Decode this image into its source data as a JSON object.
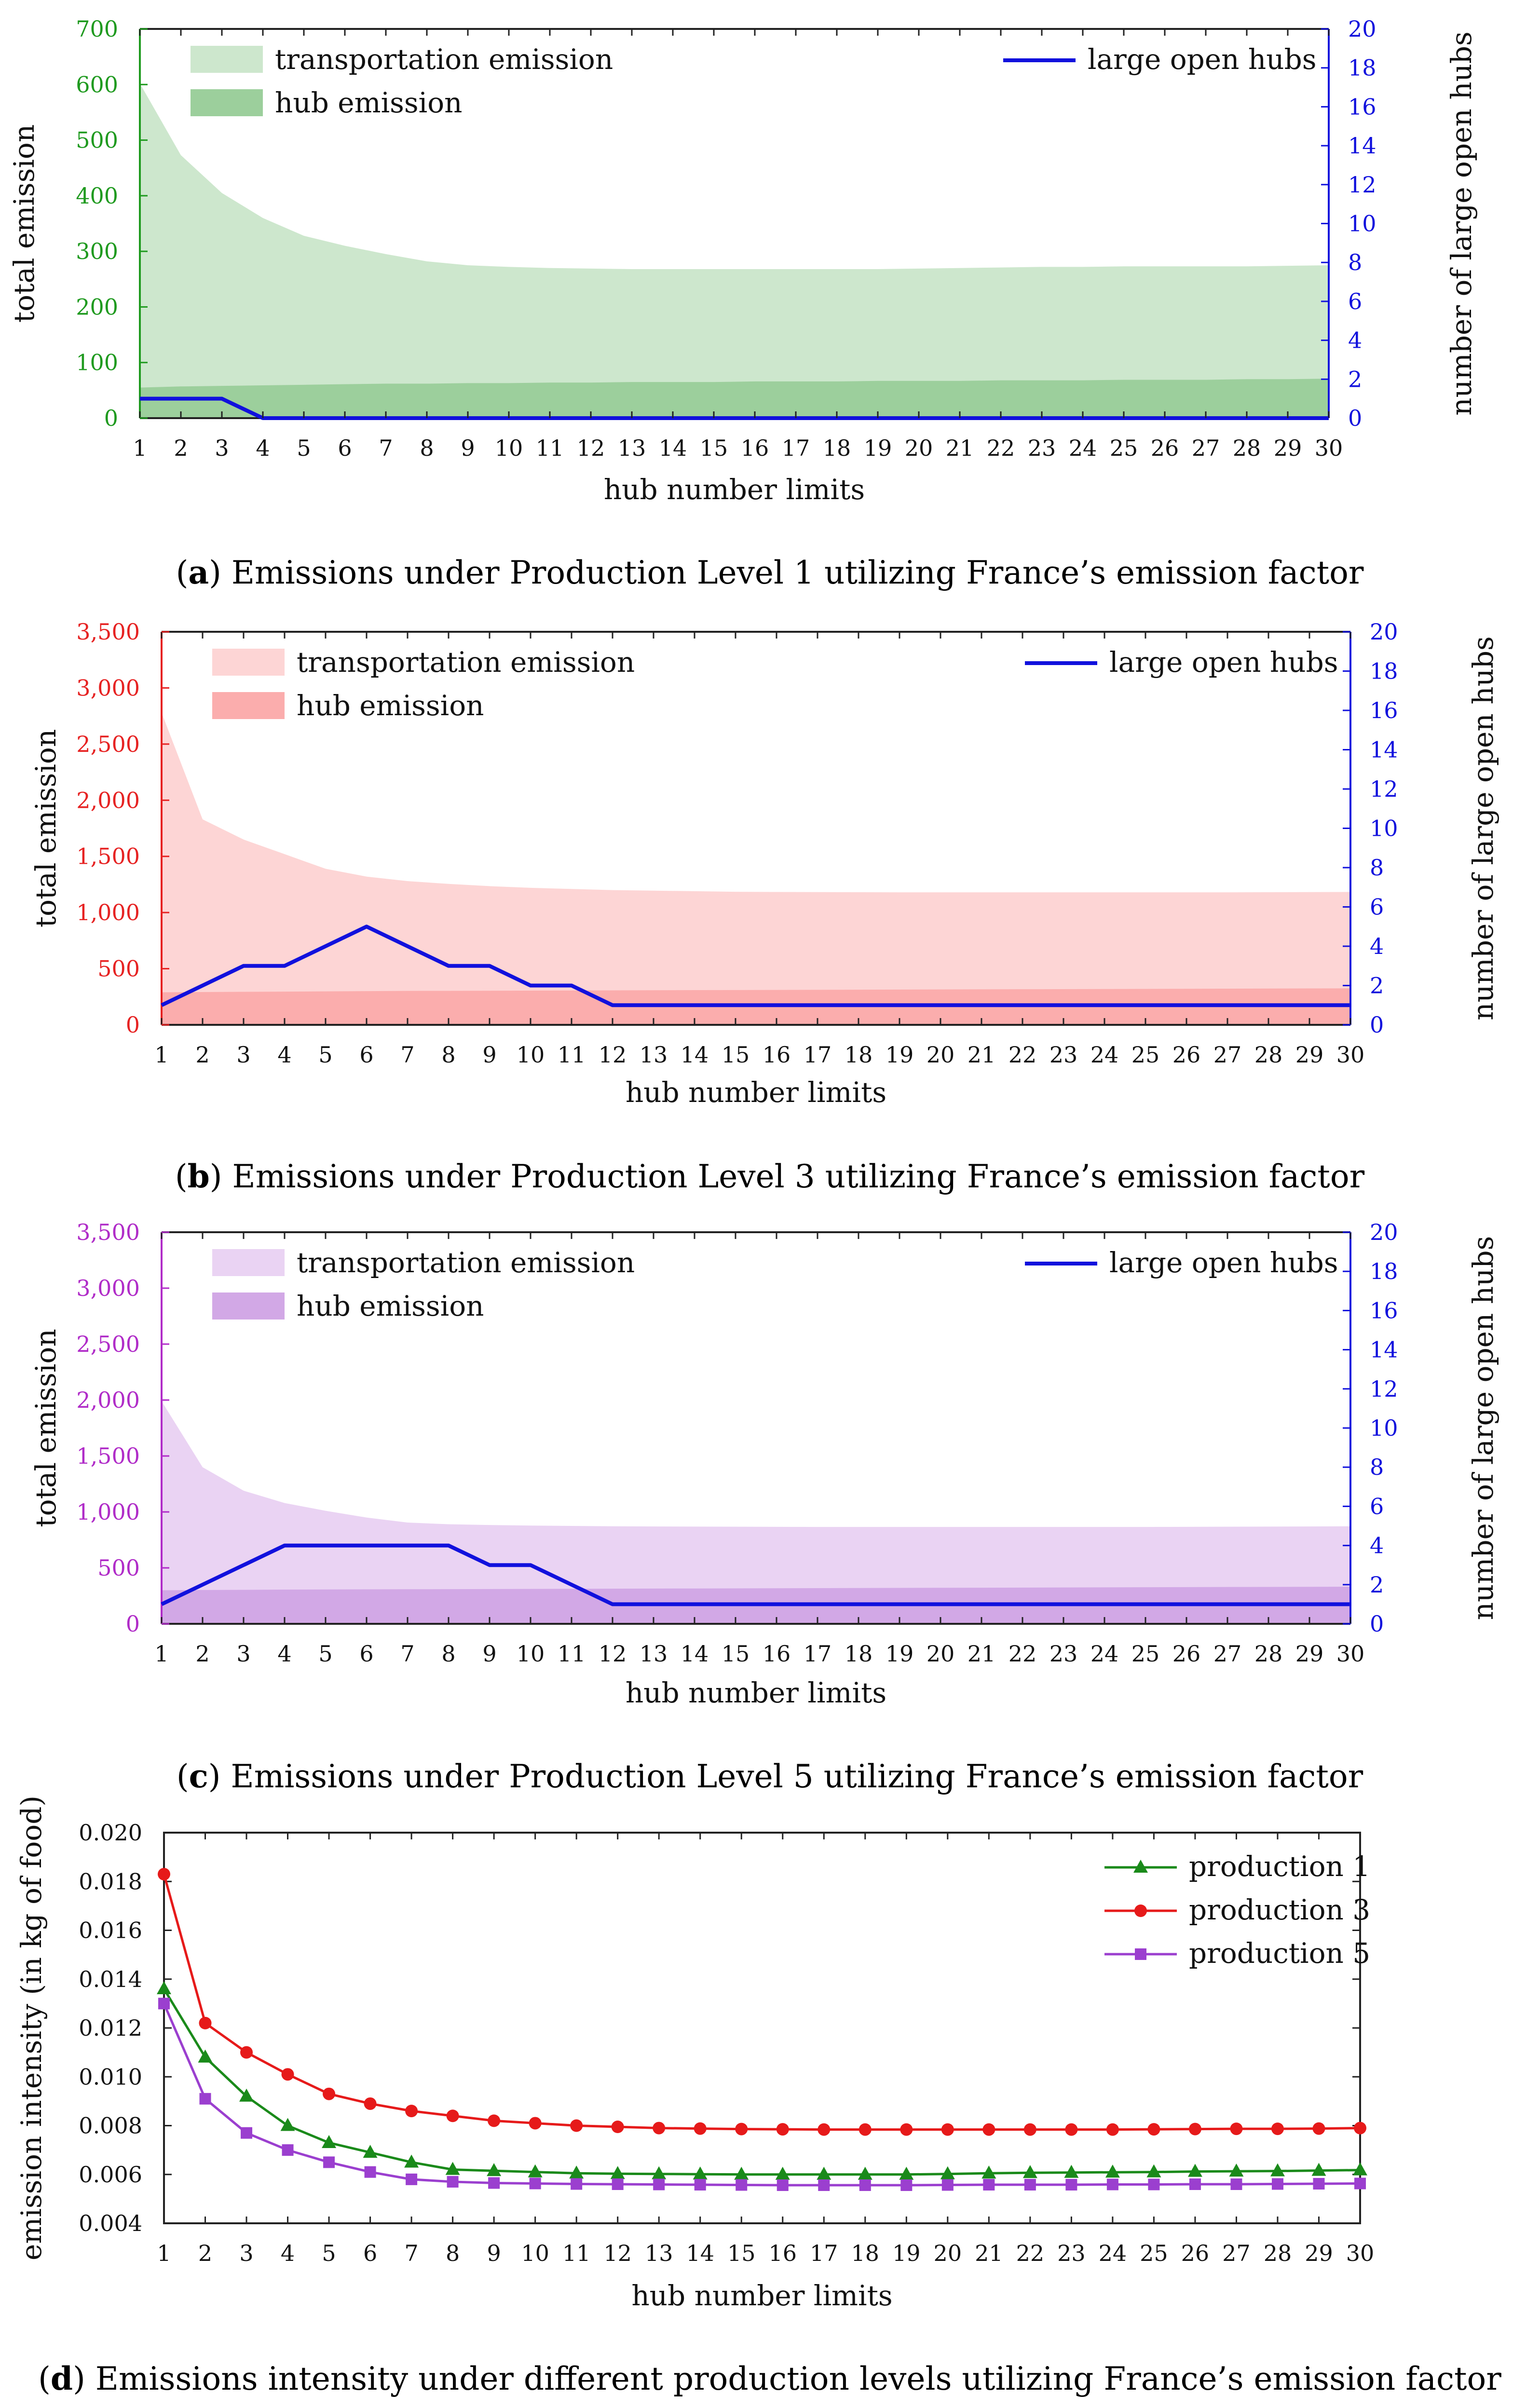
{
  "charts": [
    {
      "id": "a",
      "caption_letter": "a",
      "caption_text": "Emissions under Production Level 1 utilizing France’s emission factor",
      "axis_color": "#1f9a1f",
      "area_light": "#cde7cd",
      "area_dark": "#9ccf9c",
      "line_color": "#1111dd",
      "chart_data": {
        "type": "area",
        "title": "",
        "xlabel": "hub number limits",
        "ylabel": "total emission",
        "y2label": "number of large open hubs",
        "x": [
          1,
          2,
          3,
          4,
          5,
          6,
          7,
          8,
          9,
          10,
          11,
          12,
          13,
          14,
          15,
          16,
          17,
          18,
          19,
          20,
          21,
          22,
          23,
          24,
          25,
          26,
          27,
          28,
          29,
          30
        ],
        "ylim": [
          0,
          700
        ],
        "yticks": [
          0,
          100,
          200,
          300,
          400,
          500,
          600,
          700
        ],
        "ytick_labels": [
          "0",
          "100",
          "200",
          "300",
          "400",
          "500",
          "600",
          "700"
        ],
        "y2lim": [
          0,
          20
        ],
        "y2ticks": [
          0,
          2,
          4,
          6,
          8,
          10,
          12,
          14,
          16,
          18,
          20
        ],
        "y2tick_labels": [
          "0",
          "2",
          "4",
          "6",
          "8",
          "10",
          "12",
          "14",
          "16",
          "18",
          "20"
        ],
        "legend_area": [
          "transportation emission",
          "hub emission"
        ],
        "legend_line": "large open hubs",
        "series": [
          {
            "name": "total emission (transportation + hub)",
            "axis": "left",
            "values": [
              602,
              473,
              405,
              360,
              328,
              310,
              295,
              282,
              275,
              272,
              270,
              269,
              268,
              268,
              268,
              268,
              268,
              268,
              268,
              269,
              270,
              271,
              272,
              272,
              273,
              273,
              273,
              273,
              274,
              275
            ]
          },
          {
            "name": "hub emission",
            "axis": "left",
            "values": [
              55,
              57,
              58,
              59,
              60,
              61,
              62,
              62,
              63,
              63,
              64,
              64,
              65,
              65,
              65,
              66,
              66,
              66,
              67,
              67,
              67,
              68,
              68,
              68,
              69,
              69,
              69,
              70,
              70,
              71
            ]
          },
          {
            "name": "large open hubs",
            "axis": "right",
            "values": [
              1,
              1,
              1,
              0,
              0,
              0,
              0,
              0,
              0,
              0,
              0,
              0,
              0,
              0,
              0,
              0,
              0,
              0,
              0,
              0,
              0,
              0,
              0,
              0,
              0,
              0,
              0,
              0,
              0,
              0
            ]
          }
        ]
      }
    },
    {
      "id": "b",
      "caption_letter": "b",
      "caption_text": "Emissions under Production Level 3 utilizing France’s emission factor",
      "axis_color": "#e62222",
      "area_light": "#fdd5d5",
      "area_dark": "#fbadad",
      "line_color": "#1111dd",
      "chart_data": {
        "type": "area",
        "title": "",
        "xlabel": "hub number limits",
        "ylabel": "total emission",
        "y2label": "number of large open hubs",
        "x": [
          1,
          2,
          3,
          4,
          5,
          6,
          7,
          8,
          9,
          10,
          11,
          12,
          13,
          14,
          15,
          16,
          17,
          18,
          19,
          20,
          21,
          22,
          23,
          24,
          25,
          26,
          27,
          28,
          29,
          30
        ],
        "ylim": [
          0,
          3500
        ],
        "yticks": [
          0,
          500,
          1000,
          1500,
          2000,
          2500,
          3000,
          3500
        ],
        "ytick_labels": [
          "0",
          "500",
          "1,000",
          "1,500",
          "2,000",
          "2,500",
          "3,000",
          "3,500"
        ],
        "y2lim": [
          0,
          20
        ],
        "y2ticks": [
          0,
          2,
          4,
          6,
          8,
          10,
          12,
          14,
          16,
          18,
          20
        ],
        "y2tick_labels": [
          "0",
          "2",
          "4",
          "6",
          "8",
          "10",
          "12",
          "14",
          "16",
          "18",
          "20"
        ],
        "legend_area": [
          "transportation emission",
          "hub emission"
        ],
        "legend_line": "large open hubs",
        "series": [
          {
            "name": "total emission (transportation + hub)",
            "axis": "left",
            "values": [
              2780,
              1830,
              1650,
              1520,
              1390,
              1320,
              1280,
              1255,
              1235,
              1220,
              1210,
              1200,
              1195,
              1190,
              1185,
              1183,
              1182,
              1181,
              1180,
              1180,
              1180,
              1180,
              1180,
              1180,
              1180,
              1180,
              1180,
              1181,
              1182,
              1183
            ]
          },
          {
            "name": "hub emission",
            "axis": "left",
            "values": [
              290,
              292,
              294,
              296,
              298,
              300,
              302,
              303,
              304,
              305,
              306,
              307,
              308,
              309,
              310,
              311,
              312,
              313,
              314,
              315,
              316,
              317,
              318,
              319,
              320,
              321,
              322,
              323,
              324,
              325
            ]
          },
          {
            "name": "large open hubs",
            "axis": "right",
            "values": [
              1,
              2,
              3,
              3,
              4,
              5,
              4,
              3,
              3,
              2,
              2,
              1,
              1,
              1,
              1,
              1,
              1,
              1,
              1,
              1,
              1,
              1,
              1,
              1,
              1,
              1,
              1,
              1,
              1,
              1
            ]
          }
        ]
      }
    },
    {
      "id": "c",
      "caption_letter": "c",
      "caption_text": "Emissions under Production Level 5 utilizing France’s emission factor",
      "axis_color": "#b02cc8",
      "area_light": "#ead3f3",
      "area_dark": "#d2a8e6",
      "line_color": "#1111dd",
      "chart_data": {
        "type": "area",
        "title": "",
        "xlabel": "hub number limits",
        "ylabel": "total emission",
        "y2label": "number of large open hubs",
        "x": [
          1,
          2,
          3,
          4,
          5,
          6,
          7,
          8,
          9,
          10,
          11,
          12,
          13,
          14,
          15,
          16,
          17,
          18,
          19,
          20,
          21,
          22,
          23,
          24,
          25,
          26,
          27,
          28,
          29,
          30
        ],
        "ylim": [
          0,
          3500
        ],
        "yticks": [
          0,
          500,
          1000,
          1500,
          2000,
          2500,
          3000,
          3500
        ],
        "ytick_labels": [
          "0",
          "500",
          "1,000",
          "1,500",
          "2,000",
          "2,500",
          "3,000",
          "3,500"
        ],
        "y2lim": [
          0,
          20
        ],
        "y2ticks": [
          0,
          2,
          4,
          6,
          8,
          10,
          12,
          14,
          16,
          18,
          20
        ],
        "y2tick_labels": [
          "0",
          "2",
          "4",
          "6",
          "8",
          "10",
          "12",
          "14",
          "16",
          "18",
          "20"
        ],
        "legend_area": [
          "transportation emission",
          "hub emission"
        ],
        "legend_line": "large open hubs",
        "series": [
          {
            "name": "total emission (transportation + hub)",
            "axis": "left",
            "values": [
              1990,
              1400,
              1190,
              1080,
              1010,
              950,
              905,
              890,
              883,
              878,
              875,
              872,
              870,
              869,
              868,
              867,
              866,
              866,
              866,
              866,
              866,
              866,
              866,
              866,
              866,
              867,
              868,
              869,
              870,
              872
            ]
          },
          {
            "name": "hub emission",
            "axis": "left",
            "values": [
              300,
              302,
              304,
              306,
              307,
              308,
              309,
              310,
              311,
              312,
              313,
              314,
              315,
              316,
              317,
              318,
              319,
              320,
              321,
              322,
              323,
              324,
              325,
              326,
              327,
              328,
              329,
              330,
              331,
              332
            ]
          },
          {
            "name": "large open hubs",
            "axis": "right",
            "values": [
              1,
              2,
              3,
              4,
              4,
              4,
              4,
              4,
              3,
              3,
              2,
              1,
              1,
              1,
              1,
              1,
              1,
              1,
              1,
              1,
              1,
              1,
              1,
              1,
              1,
              1,
              1,
              1,
              1,
              1
            ]
          }
        ]
      }
    },
    {
      "id": "d",
      "caption_letter": "d",
      "caption_text": "Emissions intensity under different production levels utilizing France’s emission factor",
      "chart_data": {
        "type": "line",
        "title": "",
        "xlabel": "hub number limits",
        "ylabel": "emission intensity (in kg of food)",
        "x": [
          1,
          2,
          3,
          4,
          5,
          6,
          7,
          8,
          9,
          10,
          11,
          12,
          13,
          14,
          15,
          16,
          17,
          18,
          19,
          20,
          21,
          22,
          23,
          24,
          25,
          26,
          27,
          28,
          29,
          30
        ],
        "ylim": [
          0.004,
          0.02
        ],
        "yticks": [
          0.004,
          0.006,
          0.008,
          0.01,
          0.012,
          0.014,
          0.016,
          0.018,
          0.02
        ],
        "ytick_labels": [
          "0.004",
          "0.006",
          "0.008",
          "0.010",
          "0.012",
          "0.014",
          "0.016",
          "0.018",
          "0.020"
        ],
        "series": [
          {
            "name": "production 1",
            "color": "#1a8a1a",
            "marker": "triangle",
            "values": [
              0.0136,
              0.0108,
              0.0092,
              0.008,
              0.0073,
              0.0069,
              0.0065,
              0.0062,
              0.00615,
              0.0061,
              0.00605,
              0.00603,
              0.00602,
              0.00601,
              0.006,
              0.006,
              0.006,
              0.006,
              0.006,
              0.00602,
              0.00605,
              0.00607,
              0.00608,
              0.00609,
              0.0061,
              0.00612,
              0.00613,
              0.00614,
              0.00616,
              0.00618
            ]
          },
          {
            "name": "production 3",
            "color": "#e61a1a",
            "marker": "circle",
            "values": [
              0.0183,
              0.0122,
              0.011,
              0.0101,
              0.0093,
              0.0089,
              0.0086,
              0.0084,
              0.0082,
              0.0081,
              0.008,
              0.00795,
              0.0079,
              0.00788,
              0.00786,
              0.00785,
              0.00784,
              0.00784,
              0.00784,
              0.00784,
              0.00784,
              0.00784,
              0.00784,
              0.00784,
              0.00785,
              0.00786,
              0.00787,
              0.00787,
              0.00788,
              0.0079
            ]
          },
          {
            "name": "production 5",
            "color": "#9b3fcf",
            "marker": "square",
            "values": [
              0.013,
              0.0091,
              0.0077,
              0.007,
              0.0065,
              0.0061,
              0.0058,
              0.0057,
              0.00565,
              0.00563,
              0.00561,
              0.0056,
              0.00559,
              0.00558,
              0.00557,
              0.00556,
              0.00556,
              0.00556,
              0.00556,
              0.00557,
              0.00558,
              0.00558,
              0.00558,
              0.00559,
              0.00559,
              0.0056,
              0.0056,
              0.00561,
              0.00562,
              0.00563
            ]
          }
        ]
      }
    }
  ]
}
